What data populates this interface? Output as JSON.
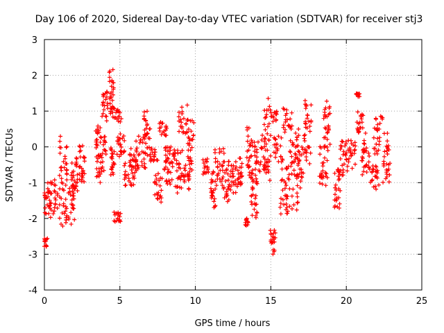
{
  "chart_data": {
    "type": "scatter",
    "title": "Day 106 of 2020, Sidereal Day-to-day VTEC variation (SDTVAR) for receiver stj3",
    "xlabel": "GPS time / hours",
    "ylabel": "SDTVAR / TECUs",
    "xlim": [
      0,
      25
    ],
    "ylim": [
      -4,
      3
    ],
    "x_ticks": [
      "0",
      "5",
      "10",
      "15",
      "20",
      "25"
    ],
    "y_ticks": [
      "-4",
      "-3",
      "-2",
      "-1",
      "0",
      "1",
      "2",
      "3"
    ],
    "grid": true,
    "marker": "+",
    "color": "#ff0000",
    "series": [
      {
        "name": "SDTVAR",
        "clusters": [
          {
            "x": [
              0.0,
              0.2
            ],
            "y": [
              -2.8,
              -2.55
            ]
          },
          {
            "x": [
              0.0,
              0.5
            ],
            "y": [
              -2.0,
              -1.1
            ]
          },
          {
            "x": [
              0.2,
              0.9
            ],
            "y": [
              -1.9,
              -0.9
            ]
          },
          {
            "x": [
              1.0,
              1.5
            ],
            "y": [
              -2.3,
              0.3
            ]
          },
          {
            "x": [
              1.4,
              2.0
            ],
            "y": [
              -2.2,
              -0.5
            ]
          },
          {
            "x": [
              1.8,
              2.2
            ],
            "y": [
              -1.4,
              -0.2
            ]
          },
          {
            "x": [
              2.3,
              2.7
            ],
            "y": [
              -1.1,
              0.1
            ]
          },
          {
            "x": [
              3.4,
              3.7
            ],
            "y": [
              -1.0,
              0.6
            ]
          },
          {
            "x": [
              3.7,
              4.1
            ],
            "y": [
              -0.8,
              0.3
            ]
          },
          {
            "x": [
              3.8,
              4.2
            ],
            "y": [
              0.7,
              1.6
            ]
          },
          {
            "x": [
              4.3,
              4.6
            ],
            "y": [
              0.9,
              2.2
            ]
          },
          {
            "x": [
              4.4,
              4.7
            ],
            "y": [
              -0.8,
              0.0
            ]
          },
          {
            "x": [
              4.5,
              5.1
            ],
            "y": [
              0.6,
              1.1
            ]
          },
          {
            "x": [
              4.6,
              5.2
            ],
            "y": [
              -2.1,
              -1.8
            ]
          },
          {
            "x": [
              4.8,
              5.3
            ],
            "y": [
              -0.4,
              0.4
            ]
          },
          {
            "x": [
              5.2,
              6.0
            ],
            "y": [
              -1.1,
              -0.4
            ]
          },
          {
            "x": [
              5.6,
              6.3
            ],
            "y": [
              -0.7,
              0.2
            ]
          },
          {
            "x": [
              6.0,
              6.7
            ],
            "y": [
              -0.6,
              0.3
            ]
          },
          {
            "x": [
              6.6,
              7.0
            ],
            "y": [
              -0.6,
              1.0
            ]
          },
          {
            "x": [
              7.0,
              7.5
            ],
            "y": [
              -0.4,
              0.0
            ]
          },
          {
            "x": [
              7.3,
              7.8
            ],
            "y": [
              -1.6,
              -0.7
            ]
          },
          {
            "x": [
              7.6,
              8.1
            ],
            "y": [
              0.3,
              0.7
            ]
          },
          {
            "x": [
              7.8,
              8.5
            ],
            "y": [
              -1.1,
              -0.4
            ]
          },
          {
            "x": [
              8.0,
              8.6
            ],
            "y": [
              -0.4,
              0.0
            ]
          },
          {
            "x": [
              8.6,
              9.2
            ],
            "y": [
              -1.3,
              0.0
            ]
          },
          {
            "x": [
              8.8,
              9.5
            ],
            "y": [
              0.3,
              1.2
            ]
          },
          {
            "x": [
              9.2,
              9.8
            ],
            "y": [
              -1.2,
              -0.5
            ]
          },
          {
            "x": [
              9.5,
              9.9
            ],
            "y": [
              -0.5,
              0.8
            ]
          },
          {
            "x": [
              10.5,
              10.9
            ],
            "y": [
              -0.8,
              -0.3
            ]
          },
          {
            "x": [
              11.0,
              11.4
            ],
            "y": [
              -1.7,
              -0.6
            ]
          },
          {
            "x": [
              11.3,
              11.9
            ],
            "y": [
              -1.1,
              0.0
            ]
          },
          {
            "x": [
              11.8,
              12.3
            ],
            "y": [
              -1.6,
              -0.4
            ]
          },
          {
            "x": [
              12.3,
              12.8
            ],
            "y": [
              -1.3,
              -0.4
            ]
          },
          {
            "x": [
              12.8,
              13.1
            ],
            "y": [
              -1.1,
              -0.3
            ]
          },
          {
            "x": [
              13.3,
              13.5
            ],
            "y": [
              -2.2,
              -2.0
            ]
          },
          {
            "x": [
              13.4,
              13.8
            ],
            "y": [
              -1.0,
              0.6
            ]
          },
          {
            "x": [
              13.7,
              14.1
            ],
            "y": [
              -2.0,
              -0.6
            ]
          },
          {
            "x": [
              13.9,
              14.6
            ],
            "y": [
              -0.7,
              0.4
            ]
          },
          {
            "x": [
              14.5,
              15.0
            ],
            "y": [
              -1.0,
              1.4
            ]
          },
          {
            "x": [
              14.9,
              15.3
            ],
            "y": [
              -3.0,
              -2.3
            ]
          },
          {
            "x": [
              15.0,
              15.4
            ],
            "y": [
              0.7,
              1.0
            ]
          },
          {
            "x": [
              15.2,
              15.8
            ],
            "y": [
              -0.5,
              0.3
            ]
          },
          {
            "x": [
              15.6,
              16.2
            ],
            "y": [
              -1.9,
              -0.5
            ]
          },
          {
            "x": [
              15.8,
              16.4
            ],
            "y": [
              0.4,
              1.1
            ]
          },
          {
            "x": [
              16.2,
              16.8
            ],
            "y": [
              -1.8,
              0.2
            ]
          },
          {
            "x": [
              16.6,
              17.2
            ],
            "y": [
              -1.2,
              0.5
            ]
          },
          {
            "x": [
              17.2,
              17.7
            ],
            "y": [
              -0.5,
              1.3
            ]
          },
          {
            "x": [
              18.2,
              18.8
            ],
            "y": [
              -1.1,
              0.2
            ]
          },
          {
            "x": [
              18.5,
              19.0
            ],
            "y": [
              0.0,
              1.3
            ]
          },
          {
            "x": [
              19.2,
              19.6
            ],
            "y": [
              -1.8,
              -0.6
            ]
          },
          {
            "x": [
              19.6,
              20.2
            ],
            "y": [
              -0.8,
              0.2
            ]
          },
          {
            "x": [
              20.0,
              20.6
            ],
            "y": [
              -0.6,
              0.2
            ]
          },
          {
            "x": [
              20.6,
              20.9
            ],
            "y": [
              1.4,
              1.5
            ]
          },
          {
            "x": [
              20.7,
              21.2
            ],
            "y": [
              0.4,
              1.0
            ]
          },
          {
            "x": [
              21.0,
              21.6
            ],
            "y": [
              -0.8,
              0.6
            ]
          },
          {
            "x": [
              21.6,
              22.2
            ],
            "y": [
              -1.3,
              -0.5
            ]
          },
          {
            "x": [
              21.8,
              22.4
            ],
            "y": [
              -0.2,
              0.9
            ]
          },
          {
            "x": [
              22.4,
              22.9
            ],
            "y": [
              -1.0,
              0.4
            ]
          }
        ]
      }
    ]
  }
}
